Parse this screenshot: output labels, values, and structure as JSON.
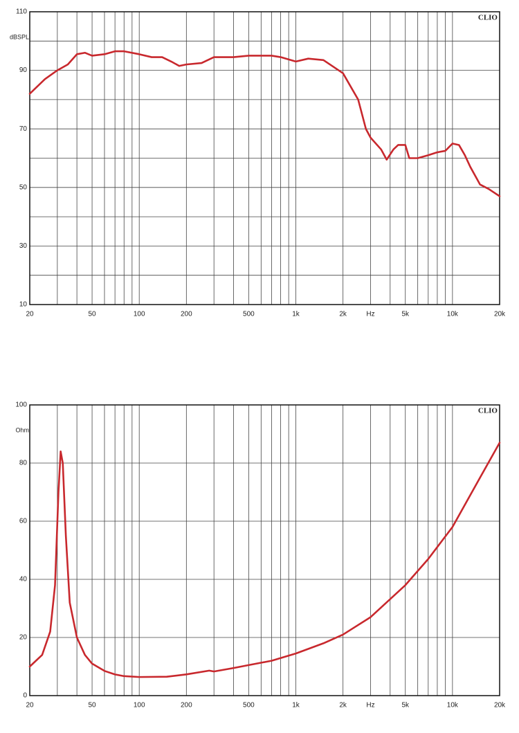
{
  "chart_data": [
    {
      "type": "line",
      "xscale": "log",
      "y_label": "dBSPL",
      "brand": "CLIO",
      "color": "#c8282d",
      "grid": true,
      "xlim": [
        20,
        20000
      ],
      "ylim": [
        10,
        110
      ],
      "xticks": [
        20,
        50,
        100,
        200,
        500,
        {
          "value": 1000,
          "label": "1k"
        },
        {
          "value": 2000,
          "label": "2k"
        },
        {
          "value": 3000,
          "label": "Hz"
        },
        {
          "value": 5000,
          "label": "5k"
        },
        {
          "value": 10000,
          "label": "10k"
        },
        {
          "value": 20000,
          "label": "20k"
        }
      ],
      "yticks": [
        10,
        30,
        50,
        70,
        90,
        110
      ],
      "y_minor_grid": [
        20,
        40,
        60,
        80,
        100
      ],
      "x_grid": [
        30,
        40,
        50,
        60,
        70,
        80,
        90,
        100,
        200,
        300,
        400,
        500,
        600,
        700,
        800,
        900,
        1000,
        2000,
        3000,
        4000,
        5000,
        6000,
        7000,
        8000,
        9000,
        10000
      ],
      "x": [
        20,
        25,
        30,
        35,
        40,
        45,
        50,
        60,
        70,
        80,
        100,
        120,
        140,
        160,
        180,
        200,
        250,
        300,
        400,
        500,
        600,
        700,
        800,
        1000,
        1200,
        1500,
        2000,
        2500,
        2800,
        3000,
        3500,
        3800,
        4200,
        4500,
        5000,
        5300,
        6000,
        7000,
        8000,
        9000,
        10000,
        11000,
        12000,
        13000,
        15000,
        17000,
        20000
      ],
      "values": [
        82,
        87,
        90,
        92,
        95.5,
        96,
        95,
        95.5,
        96.5,
        96.5,
        95.5,
        94.5,
        94.5,
        93,
        91.5,
        92,
        92.5,
        94.5,
        94.5,
        95,
        95,
        95,
        94.5,
        93,
        94,
        93.5,
        89,
        80,
        70,
        67,
        63,
        59.5,
        63,
        64.5,
        64.5,
        60,
        60,
        61,
        62,
        62.5,
        65,
        64.5,
        61,
        57,
        51,
        49.5,
        47
      ]
    },
    {
      "type": "line",
      "xscale": "log",
      "y_label": "Ohm",
      "brand": "CLIO",
      "color": "#c8282d",
      "grid": true,
      "xlim": [
        20,
        20000
      ],
      "ylim": [
        0,
        100
      ],
      "xticks": [
        20,
        50,
        100,
        200,
        500,
        {
          "value": 1000,
          "label": "1k"
        },
        {
          "value": 2000,
          "label": "2k"
        },
        {
          "value": 3000,
          "label": "Hz"
        },
        {
          "value": 5000,
          "label": "5k"
        },
        {
          "value": 10000,
          "label": "10k"
        },
        {
          "value": 20000,
          "label": "20k"
        }
      ],
      "yticks": [
        0,
        20,
        40,
        60,
        80,
        100
      ],
      "x_grid": [
        30,
        40,
        50,
        60,
        70,
        80,
        90,
        100,
        200,
        300,
        400,
        500,
        600,
        700,
        800,
        900,
        1000,
        2000,
        3000,
        4000,
        5000,
        6000,
        7000,
        8000,
        9000,
        10000
      ],
      "x": [
        20,
        24,
        27,
        29,
        30.5,
        31.5,
        32.5,
        34,
        36,
        40,
        45,
        50,
        60,
        70,
        80,
        100,
        150,
        200,
        280,
        300,
        400,
        500,
        700,
        1000,
        1500,
        2000,
        3000,
        5000,
        7000,
        10000,
        15000,
        20000
      ],
      "values": [
        10,
        14,
        22,
        38,
        70,
        84,
        80,
        55,
        32,
        20,
        14,
        11,
        8.5,
        7.3,
        6.7,
        6.4,
        6.5,
        7.3,
        8.6,
        8.3,
        9.5,
        10.5,
        12,
        14.5,
        18,
        21,
        27,
        38,
        47,
        58,
        75,
        87
      ]
    }
  ]
}
